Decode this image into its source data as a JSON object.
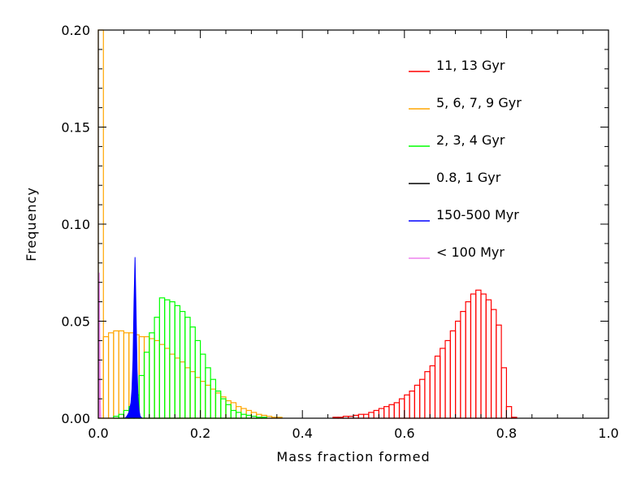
{
  "chart_data": {
    "type": "bar",
    "title": "",
    "xlabel": "Mass fraction formed",
    "ylabel": "Frequency",
    "xlim": [
      0.0,
      1.0
    ],
    "ylim": [
      0.0,
      0.2
    ],
    "bin_width": 0.01,
    "x_ticks": [
      0.0,
      0.2,
      0.4,
      0.6,
      0.8,
      1.0
    ],
    "x_tick_labels": [
      "0.0",
      "0.2",
      "0.4",
      "0.6",
      "0.8",
      "1.0"
    ],
    "y_ticks": [
      0.0,
      0.05,
      0.1,
      0.15,
      0.2
    ],
    "y_tick_labels": [
      "0.00",
      "0.05",
      "0.10",
      "0.15",
      "0.20"
    ],
    "grid": false,
    "legend_position": "top-right",
    "series": [
      {
        "name": "11, 13 Gyr",
        "color": "#ff0000",
        "fill": false,
        "x_start": 0.46,
        "values": [
          0.0005,
          0.0005,
          0.001,
          0.001,
          0.0015,
          0.002,
          0.002,
          0.003,
          0.004,
          0.005,
          0.006,
          0.007,
          0.008,
          0.01,
          0.012,
          0.014,
          0.017,
          0.02,
          0.024,
          0.027,
          0.032,
          0.036,
          0.04,
          0.045,
          0.05,
          0.055,
          0.06,
          0.064,
          0.066,
          0.064,
          0.061,
          0.056,
          0.048,
          0.026,
          0.006,
          0.0005
        ]
      },
      {
        "name": "5, 6, 7, 9 Gyr",
        "color": "#ffa500",
        "fill": false,
        "x_start": 0.0,
        "values": [
          0.2,
          0.042,
          0.044,
          0.045,
          0.045,
          0.044,
          0.044,
          0.043,
          0.042,
          0.042,
          0.041,
          0.04,
          0.038,
          0.036,
          0.033,
          0.031,
          0.029,
          0.026,
          0.024,
          0.021,
          0.019,
          0.017,
          0.015,
          0.013,
          0.011,
          0.009,
          0.008,
          0.006,
          0.005,
          0.004,
          0.003,
          0.002,
          0.0015,
          0.001,
          0.0005,
          0.0005
        ]
      },
      {
        "name": "2, 3, 4 Gyr",
        "color": "#00ff00",
        "fill": false,
        "x_start": 0.03,
        "values": [
          0.001,
          0.002,
          0.004,
          0.006,
          0.012,
          0.022,
          0.034,
          0.044,
          0.052,
          0.062,
          0.061,
          0.06,
          0.058,
          0.055,
          0.052,
          0.047,
          0.04,
          0.033,
          0.026,
          0.02,
          0.014,
          0.01,
          0.007,
          0.004,
          0.003,
          0.002,
          0.0015,
          0.001,
          0.0005,
          0.0005
        ]
      },
      {
        "name": "0.8, 1 Gyr",
        "color": "#000000",
        "fill": false,
        "x_start": 0.0,
        "values": []
      },
      {
        "name": "150-500 Myr",
        "color": "#0000ff",
        "fill": true,
        "x": [
          0.052,
          0.056,
          0.06,
          0.064,
          0.066,
          0.068,
          0.07,
          0.072,
          0.074,
          0.076,
          0.078,
          0.08,
          0.082,
          0.086
        ],
        "values": [
          0.0,
          0.001,
          0.003,
          0.008,
          0.015,
          0.03,
          0.06,
          0.083,
          0.055,
          0.025,
          0.01,
          0.004,
          0.001,
          0.0
        ]
      },
      {
        "name": "< 100 Myr",
        "color": "#ee82ee",
        "fill": true,
        "x": [
          0.0,
          0.001,
          0.002,
          0.003,
          0.004,
          0.005
        ],
        "values": [
          0.0,
          0.05,
          0.075,
          0.04,
          0.01,
          0.0
        ]
      }
    ]
  }
}
